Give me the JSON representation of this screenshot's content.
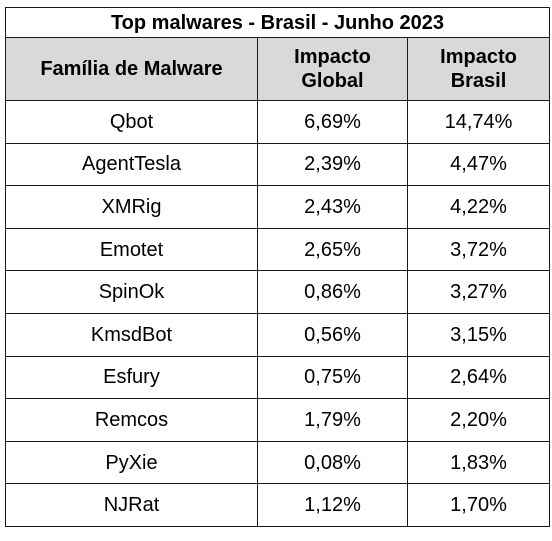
{
  "table": {
    "title": "Top malwares - Brasil - Junho 2023",
    "headers": {
      "family": "Família de Malware",
      "global_line1": "Impacto",
      "global_line2": "Global",
      "brasil_line1": "Impacto",
      "brasil_line2": "Brasil"
    },
    "rows": [
      {
        "family": "Qbot",
        "global": "6,69%",
        "brasil": "14,74%"
      },
      {
        "family": "AgentTesla",
        "global": "2,39%",
        "brasil": "4,47%"
      },
      {
        "family": "XMRig",
        "global": "2,43%",
        "brasil": "4,22%"
      },
      {
        "family": "Emotet",
        "global": "2,65%",
        "brasil": "3,72%"
      },
      {
        "family": "SpinOk",
        "global": "0,86%",
        "brasil": "3,27%"
      },
      {
        "family": "KmsdBot",
        "global": "0,56%",
        "brasil": "3,15%"
      },
      {
        "family": "Esfury",
        "global": "0,75%",
        "brasil": "2,64%"
      },
      {
        "family": "Remcos",
        "global": "1,79%",
        "brasil": "2,20%"
      },
      {
        "family": "PyXie",
        "global": "0,08%",
        "brasil": "1,83%"
      },
      {
        "family": "NJRat",
        "global": "1,12%",
        "brasil": "1,70%"
      }
    ],
    "header_bg": "#d9d9d9",
    "border_color": "#1a1a1a"
  }
}
